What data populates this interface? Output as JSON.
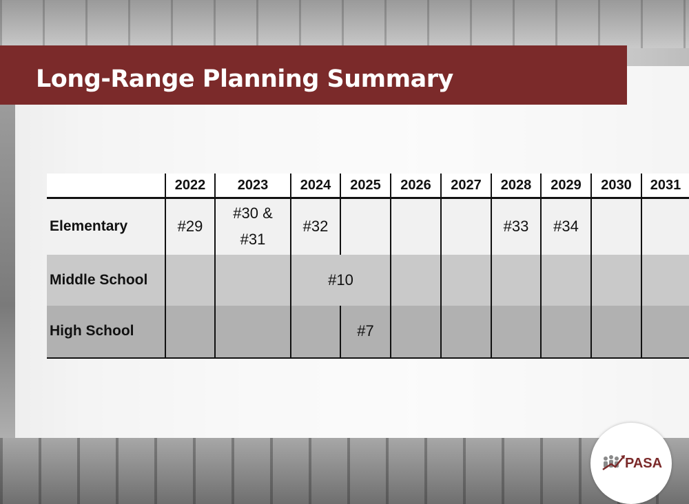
{
  "slide": {
    "title": "Long-Range Planning Summary"
  },
  "table": {
    "years": [
      "2022",
      "2023",
      "2024",
      "2025",
      "2026",
      "2027",
      "2028",
      "2029",
      "2030",
      "2031"
    ],
    "rows": [
      {
        "label": "Elementary",
        "cells": [
          "#29",
          "#30 &\n#31",
          "#32",
          "",
          "",
          "",
          "#33",
          "#34",
          "",
          ""
        ]
      },
      {
        "label": "Middle School",
        "merged_text": "#10",
        "merged_span_years": [
          "2024",
          "2025"
        ]
      },
      {
        "label": "High School",
        "cells": [
          "",
          "",
          "",
          "#7",
          "",
          "",
          "",
          "",
          "",
          ""
        ]
      }
    ]
  },
  "logo": {
    "text": "PASA",
    "icon": "pasa-people-arrow-icon",
    "color": "#7b2a2a"
  },
  "colors": {
    "title_bar": "#7b2a2a",
    "title_text": "#ffffff"
  }
}
